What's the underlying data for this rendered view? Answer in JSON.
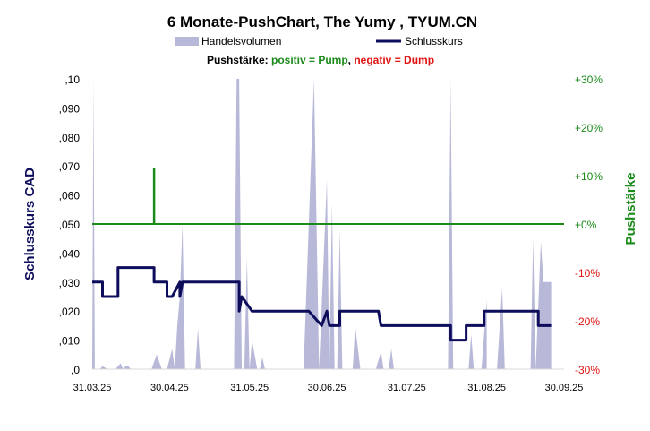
{
  "chart_data": {
    "type": "line",
    "title": "6 Monate-PushChart,  The Yumy , TYUM.CN",
    "legend": {
      "items": [
        {
          "label": "Handelsvolumen",
          "color": "#b8b8d8",
          "kind": "area"
        },
        {
          "label": "Schlusskurs",
          "color": "#0d0d5c",
          "kind": "line"
        }
      ],
      "placement": "top"
    },
    "subtitle": {
      "prefix": "Pushstärke: ",
      "positive": "positiv = Pump",
      "separator": ", ",
      "negative": "negativ = Dump",
      "positive_color": "#1a8a1a",
      "negative_color": "#e01010"
    },
    "ylabel_left": "Schlusskurs CAD",
    "ylabel_right": "Pushstärke",
    "ylim_left": [
      0,
      0.1
    ],
    "ylim_right": [
      -30,
      30
    ],
    "left_ticks": [
      ",10",
      ",090",
      ",080",
      ",070",
      ",060",
      ",050",
      ",040",
      ",030",
      ",020",
      ",010",
      ",0"
    ],
    "right_ticks": [
      {
        "label": "+30%",
        "color": "#1a8a1a"
      },
      {
        "label": "+20%",
        "color": "#1a8a1a"
      },
      {
        "label": "+10%",
        "color": "#1a8a1a"
      },
      {
        "label": "+0%",
        "color": "#1a8a1a"
      },
      {
        "label": "-10%",
        "color": "#e01010"
      },
      {
        "label": "-20%",
        "color": "#e01010"
      },
      {
        "label": "-30%",
        "color": "#e01010"
      }
    ],
    "x_ticks": [
      "31.03.25",
      "30.04.25",
      "31.05.25",
      "30.06.25",
      "31.07.25",
      "31.08.25",
      "30.09.25"
    ],
    "xlim_days": [
      0,
      183
    ],
    "x_tick_days": [
      0,
      30,
      61,
      91,
      122,
      153,
      183
    ],
    "close_series": {
      "name": "Schlusskurs",
      "color": "#0d0d5c",
      "points": [
        [
          0,
          0.03
        ],
        [
          4,
          0.03
        ],
        [
          4,
          0.025
        ],
        [
          10,
          0.025
        ],
        [
          10,
          0.035
        ],
        [
          24,
          0.035
        ],
        [
          24,
          0.03
        ],
        [
          29,
          0.03
        ],
        [
          29,
          0.025
        ],
        [
          31,
          0.025
        ],
        [
          34,
          0.03
        ],
        [
          34,
          0.025
        ],
        [
          35,
          0.03
        ],
        [
          57,
          0.03
        ],
        [
          57,
          0.02
        ],
        [
          58,
          0.025
        ],
        [
          62,
          0.02
        ],
        [
          84,
          0.02
        ],
        [
          89,
          0.015
        ],
        [
          91,
          0.02
        ],
        [
          92,
          0.015
        ],
        [
          96,
          0.015
        ],
        [
          96,
          0.02
        ],
        [
          111,
          0.02
        ],
        [
          112,
          0.015
        ],
        [
          139,
          0.015
        ],
        [
          139,
          0.01
        ],
        [
          145,
          0.01
        ],
        [
          145,
          0.015
        ],
        [
          152,
          0.015
        ],
        [
          152,
          0.02
        ],
        [
          173,
          0.02
        ],
        [
          173,
          0.015
        ],
        [
          178,
          0.015
        ]
      ]
    },
    "volume_series": {
      "name": "Handelsvolumen",
      "color": "#b8b8d8",
      "points": [
        [
          0,
          0
        ],
        [
          0.5,
          100
        ],
        [
          1,
          0
        ],
        [
          3,
          0
        ],
        [
          4,
          1
        ],
        [
          6,
          0
        ],
        [
          9,
          0
        ],
        [
          11,
          2
        ],
        [
          12,
          0
        ],
        [
          13,
          1
        ],
        [
          14,
          1
        ],
        [
          15,
          0
        ],
        [
          23,
          0
        ],
        [
          25,
          5
        ],
        [
          27,
          0
        ],
        [
          29,
          0
        ],
        [
          31,
          7
        ],
        [
          32,
          0
        ],
        [
          33,
          15
        ],
        [
          34,
          25
        ],
        [
          35,
          50
        ],
        [
          36,
          0
        ],
        [
          40,
          0
        ],
        [
          41,
          14
        ],
        [
          42,
          0
        ],
        [
          55,
          0
        ],
        [
          56,
          100
        ],
        [
          57,
          100
        ],
        [
          58,
          0
        ],
        [
          59,
          0
        ],
        [
          60,
          38
        ],
        [
          61,
          0
        ],
        [
          62,
          10
        ],
        [
          64,
          0
        ],
        [
          65,
          0
        ],
        [
          66,
          4
        ],
        [
          67,
          0
        ],
        [
          82,
          0
        ],
        [
          86,
          100
        ],
        [
          88,
          0
        ],
        [
          88,
          0
        ],
        [
          91,
          65
        ],
        [
          92,
          0
        ],
        [
          93,
          57
        ],
        [
          94,
          0
        ],
        [
          95,
          0
        ],
        [
          96,
          48
        ],
        [
          97,
          0
        ],
        [
          97,
          0
        ],
        [
          101,
          0
        ],
        [
          102,
          15
        ],
        [
          104,
          0
        ],
        [
          110,
          0
        ],
        [
          112,
          6
        ],
        [
          113,
          0
        ],
        [
          115,
          0
        ],
        [
          116,
          7
        ],
        [
          117,
          0
        ],
        [
          138,
          0
        ],
        [
          139,
          100
        ],
        [
          140,
          0
        ],
        [
          146,
          0
        ],
        [
          147,
          12
        ],
        [
          148,
          0
        ],
        [
          150,
          0
        ],
        [
          151,
          0
        ],
        [
          153,
          24
        ],
        [
          153,
          0
        ],
        [
          157,
          0
        ],
        [
          159,
          28
        ],
        [
          160,
          0
        ],
        [
          170,
          0
        ],
        [
          171,
          45
        ],
        [
          172,
          0
        ],
        [
          172,
          0
        ],
        [
          174,
          44
        ],
        [
          175,
          30
        ],
        [
          178,
          30
        ],
        [
          178,
          0
        ]
      ]
    },
    "push_series": {
      "name": "Pushstärke",
      "color": "#1a8a1a",
      "baseline_percent": 0,
      "spikes": [
        {
          "day": 24,
          "percent": 11.5
        }
      ]
    }
  }
}
